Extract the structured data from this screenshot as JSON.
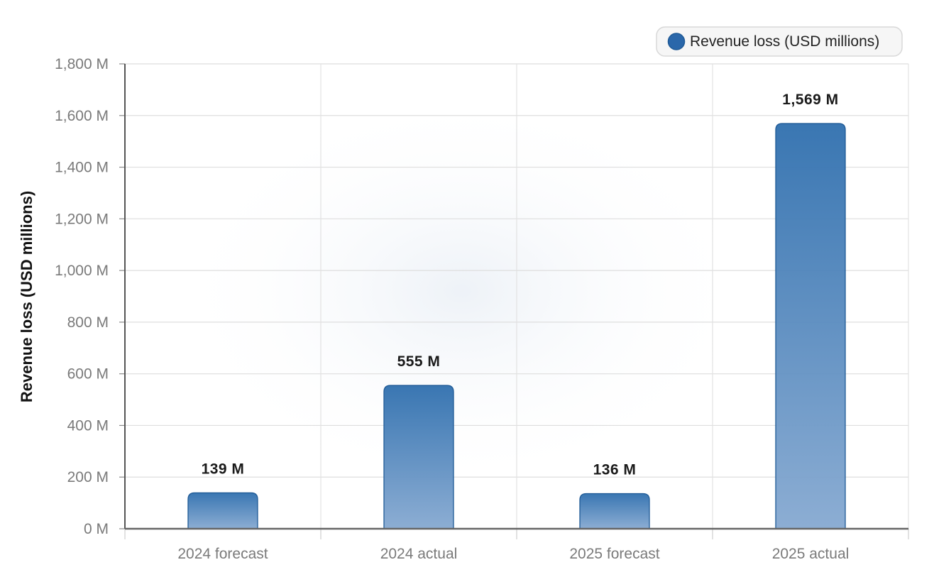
{
  "chart_data": {
    "type": "bar",
    "categories": [
      "2024 forecast",
      "2024 actual",
      "2025 forecast",
      "2025 actual"
    ],
    "series": [
      {
        "name": "Revenue loss (USD millions)",
        "values": [
          139,
          555,
          136,
          1569
        ]
      }
    ],
    "data_labels": [
      "139 M",
      "555 M",
      "136 M",
      "1,569 M"
    ],
    "ylabel": "Revenue loss (USD millions)",
    "ylim": [
      0,
      1800
    ],
    "yticks": [
      0,
      200,
      400,
      600,
      800,
      1000,
      1200,
      1400,
      1600,
      1800
    ],
    "ytick_labels": [
      "0 M",
      "200 M",
      "400 M",
      "600 M",
      "800 M",
      "1,000 M",
      "1,200 M",
      "1,400 M",
      "1,600 M",
      "1,800 M"
    ],
    "grid": true,
    "legend_position": "top-right",
    "colors": {
      "bar_top": "#2f6fae",
      "bar_bottom": "#86a9d1",
      "bar_stroke": "#1f5a96",
      "legend_marker": "#2a67aa"
    }
  }
}
